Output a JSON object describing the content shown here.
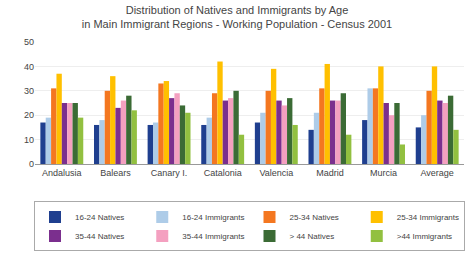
{
  "chart_data": {
    "type": "bar",
    "title": "Distribution of Natives and Immigrants by Age\nin Main Immigrant Regions - Working Population - Census 2001",
    "categories": [
      "Andalusia",
      "Balears",
      "Canary I.",
      "Catalonia",
      "Valencia",
      "Madrid",
      "Murcia",
      "Average"
    ],
    "series": [
      {
        "name": "16-24 Natives",
        "color": "#1F3F8F",
        "values": [
          17,
          16,
          16,
          16,
          17,
          14,
          18,
          15
        ]
      },
      {
        "name": "16-24 Immigrants",
        "color": "#AECCE8",
        "values": [
          19,
          18,
          17,
          19,
          21,
          21,
          31,
          20
        ]
      },
      {
        "name": "25-34 Natives",
        "color": "#F47720",
        "values": [
          31,
          30,
          33,
          29,
          30,
          31,
          31,
          30
        ]
      },
      {
        "name": "25-34 Immigrants",
        "color": "#FFC000",
        "values": [
          37,
          36,
          34,
          42,
          39,
          41,
          40,
          40
        ]
      },
      {
        "name": "35-44 Natives",
        "color": "#7B2F8E",
        "values": [
          25,
          23,
          27,
          26,
          26,
          26,
          25,
          26
        ]
      },
      {
        "name": "35-44 Immigrants",
        "color": "#F4A0C0",
        "values": [
          25,
          26,
          29,
          27,
          24,
          26,
          20,
          25
        ]
      },
      {
        "name": "> 44 Natives",
        "color": "#3B6B35",
        "values": [
          25,
          28,
          24,
          30,
          27,
          29,
          25,
          28
        ]
      },
      {
        "name": ">44 Immigrants",
        "color": "#92C040",
        "values": [
          19,
          22,
          21,
          12,
          16,
          12,
          8,
          14
        ]
      }
    ],
    "ylim": [
      0,
      50
    ],
    "yticks": [
      0,
      10,
      20,
      30,
      40,
      50
    ],
    "grid": true,
    "legend": "bottom"
  }
}
